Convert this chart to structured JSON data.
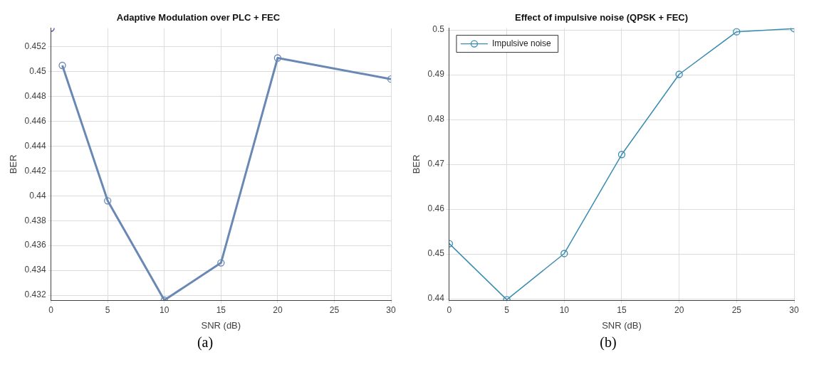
{
  "chart_data": [
    {
      "type": "line",
      "title": "Adaptive Modulation over PLC + FEC",
      "xlabel": "SNR (dB)",
      "ylabel": "BER",
      "xlim": [
        0,
        30
      ],
      "xticks": [
        0,
        5,
        10,
        15,
        20,
        25,
        30
      ],
      "ylim": [
        0.4316,
        0.4535
      ],
      "yticks": [
        0.432,
        0.434,
        0.436,
        0.438,
        0.44,
        0.442,
        0.444,
        0.446,
        0.448,
        0.45,
        0.452
      ],
      "grid": true,
      "marker": "circle",
      "line_style": "solid",
      "annotations": [
        "(a)"
      ],
      "series": [
        {
          "type": "scatter",
          "color": "#3f3f9a",
          "x": [
            0
          ],
          "values": [
            0.4535
          ]
        },
        {
          "type": "line",
          "color": "#6a88b4",
          "x": [
            1,
            5,
            10,
            15,
            20,
            30
          ],
          "values": [
            0.4505,
            0.4396,
            0.4316,
            0.4346,
            0.4511,
            0.4494
          ]
        }
      ]
    },
    {
      "type": "line",
      "title": "Effect of impulsive noise (QPSK + FEC)",
      "xlabel": "SNR (dB)",
      "ylabel": "BER",
      "xlim": [
        0,
        30
      ],
      "xticks": [
        0,
        5,
        10,
        15,
        20,
        25,
        30
      ],
      "ylim": [
        0.4397,
        0.5004
      ],
      "yticks": [
        0.44,
        0.45,
        0.46,
        0.47,
        0.48,
        0.49,
        0.5
      ],
      "grid": true,
      "legend": "top left",
      "marker": "circle",
      "line_style": "solid",
      "annotations": [
        "(b)"
      ],
      "series": [
        {
          "name": "Impulsive noise",
          "color": "#3a8db0",
          "x": [
            0,
            5,
            10,
            15,
            20,
            25,
            30
          ],
          "values": [
            0.4523,
            0.4398,
            0.4501,
            0.4722,
            0.4901,
            0.4996,
            0.5003
          ]
        }
      ]
    }
  ]
}
